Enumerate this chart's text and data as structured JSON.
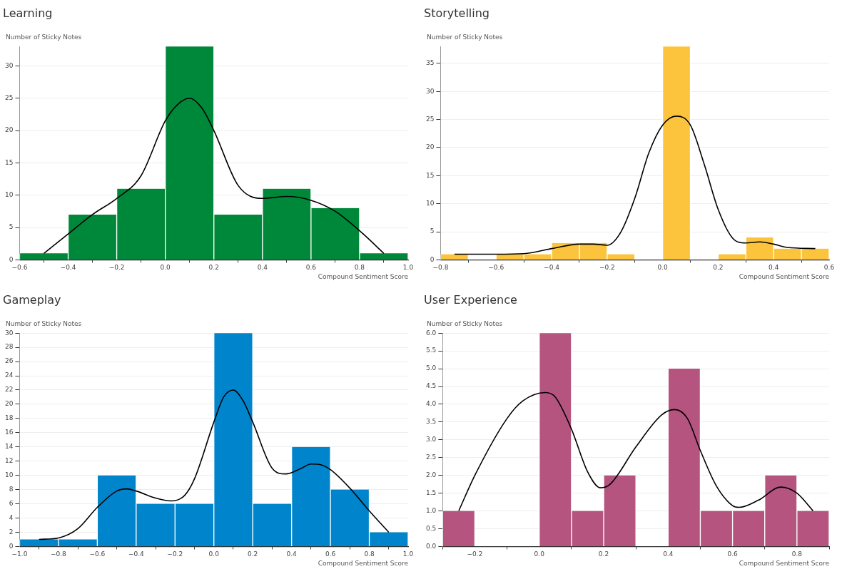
{
  "chart_data": [
    {
      "type": "histogram",
      "title": "Learning",
      "ylabel": "Number of Sticky Notes",
      "xlabel": "Compound Sentiment Score",
      "color": "#00883a",
      "bins": [
        -0.6,
        -0.4,
        -0.2,
        0,
        0.2,
        0.4,
        0.6,
        0.8,
        1.0
      ],
      "values": [
        1,
        7,
        11,
        33,
        7,
        11,
        8,
        1
      ],
      "series": [
        {
          "type": "line",
          "color": "#000000",
          "x": [
            -0.5,
            -0.4,
            -0.3,
            -0.2,
            -0.1,
            0,
            0.05,
            0.1,
            0.15,
            0.2,
            0.3,
            0.4,
            0.5,
            0.6,
            0.7,
            0.8,
            0.9
          ],
          "values": [
            1,
            4,
            7,
            9.5,
            13,
            21.5,
            24,
            25,
            23.5,
            20,
            11.5,
            9.5,
            9.8,
            9.2,
            7.5,
            4.5,
            1
          ]
        }
      ],
      "xlim": [
        -0.6,
        1.0
      ],
      "xticks": [
        {
          "value": -0.6,
          "label": "−0.6"
        },
        {
          "value": -0.4,
          "label": "−0.4"
        },
        {
          "value": -0.2,
          "label": "−0.2"
        },
        {
          "value": 0,
          "label": "0.0"
        },
        {
          "value": 0.2,
          "label": "0.2"
        },
        {
          "value": 0.4,
          "label": "0.4"
        },
        {
          "value": 0.6,
          "label": "0.6"
        },
        {
          "value": 0.8,
          "label": "0.8"
        },
        {
          "value": 1.0,
          "label": "1.0"
        }
      ],
      "ylim": [
        0,
        33
      ],
      "yticks": [
        0,
        5,
        10,
        15,
        20,
        25,
        30
      ],
      "grid": "y",
      "legend": false
    },
    {
      "type": "histogram",
      "title": "Storytelling",
      "ylabel": "Number of Sticky Notes",
      "xlabel": "Compound Sentiment Score",
      "color": "#fcc43c",
      "bins": [
        -0.8,
        -0.7,
        -0.6,
        -0.5,
        -0.4,
        -0.3,
        -0.2,
        -0.1,
        0,
        0.1,
        0.2,
        0.3,
        0.4,
        0.5,
        0.6
      ],
      "values": [
        1,
        0,
        1,
        1,
        3,
        3,
        1,
        0,
        38,
        0,
        1,
        4,
        2,
        2
      ],
      "series": [
        {
          "type": "line",
          "color": "#000000",
          "x": [
            -0.75,
            -0.6,
            -0.5,
            -0.4,
            -0.3,
            -0.25,
            -0.2,
            -0.15,
            -0.1,
            -0.05,
            0,
            0.05,
            0.1,
            0.15,
            0.2,
            0.25,
            0.3,
            0.35,
            0.4,
            0.45,
            0.55
          ],
          "values": [
            1,
            1,
            1.1,
            2,
            2.8,
            2.8,
            2.6,
            5,
            11,
            19,
            24,
            25.6,
            24,
            17,
            9,
            4,
            3,
            3.2,
            2.8,
            2.2,
            2
          ]
        }
      ],
      "xlim": [
        -0.8,
        0.6
      ],
      "xticks": [
        {
          "value": -0.8,
          "label": "−0.8"
        },
        {
          "value": -0.6,
          "label": "−0.6"
        },
        {
          "value": -0.4,
          "label": "−0.4"
        },
        {
          "value": -0.2,
          "label": "−0.2"
        },
        {
          "value": 0,
          "label": "0.0"
        },
        {
          "value": 0.2,
          "label": "0.2"
        },
        {
          "value": 0.4,
          "label": "0.4"
        },
        {
          "value": 0.6,
          "label": "0.6"
        }
      ],
      "ylim": [
        0,
        38
      ],
      "yticks": [
        0,
        5,
        10,
        15,
        20,
        25,
        30,
        35
      ],
      "grid": "y",
      "legend": false
    },
    {
      "type": "histogram",
      "title": "Gameplay",
      "ylabel": "Number of Sticky Notes",
      "xlabel": "Compound Sentiment Score",
      "color": "#0085cc",
      "bins": [
        -1.0,
        -0.8,
        -0.6,
        -0.4,
        -0.2,
        0,
        0.2,
        0.4,
        0.6,
        0.8,
        1.0
      ],
      "values": [
        1,
        1,
        10,
        6,
        6,
        30,
        6,
        14,
        8,
        2
      ],
      "series": [
        {
          "type": "line",
          "color": "#000000",
          "x": [
            -0.9,
            -0.8,
            -0.7,
            -0.6,
            -0.5,
            -0.45,
            -0.4,
            -0.3,
            -0.22,
            -0.15,
            -0.1,
            0,
            0.05,
            0.1,
            0.15,
            0.2,
            0.3,
            0.37,
            0.45,
            0.5,
            0.55,
            0.6,
            0.7,
            0.8,
            0.9
          ],
          "values": [
            1,
            1.2,
            2.5,
            5.5,
            7.8,
            8.1,
            7.8,
            6.8,
            6.4,
            7.2,
            9.5,
            17.5,
            21,
            22,
            20.5,
            17.5,
            11,
            10.2,
            11,
            11.6,
            11.5,
            10.8,
            8.2,
            5,
            2
          ]
        }
      ],
      "xlim": [
        -1.0,
        1.0
      ],
      "xticks": [
        {
          "value": -1.0,
          "label": "−1.0"
        },
        {
          "value": -0.8,
          "label": "−0.8"
        },
        {
          "value": -0.6,
          "label": "−0.6"
        },
        {
          "value": -0.4,
          "label": "−0.4"
        },
        {
          "value": -0.2,
          "label": "−0.2"
        },
        {
          "value": 0,
          "label": "0.0"
        },
        {
          "value": 0.2,
          "label": "0.2"
        },
        {
          "value": 0.4,
          "label": "0.4"
        },
        {
          "value": 0.6,
          "label": "0.6"
        },
        {
          "value": 0.8,
          "label": "0.8"
        },
        {
          "value": 1.0,
          "label": "1.0"
        }
      ],
      "ylim": [
        0,
        30
      ],
      "yticks": [
        0,
        2,
        4,
        6,
        8,
        10,
        12,
        14,
        16,
        18,
        20,
        22,
        24,
        26,
        28,
        30
      ],
      "grid": "y",
      "legend": false
    },
    {
      "type": "histogram",
      "title": "User Experience",
      "ylabel": "Number of Sticky Notes",
      "xlabel": "Compound Sentiment Score",
      "color": "#b5557f",
      "bins": [
        -0.3,
        -0.2,
        -0.1,
        0,
        0.1,
        0.2,
        0.3,
        0.4,
        0.5,
        0.6,
        0.7,
        0.8,
        0.9
      ],
      "values": [
        1,
        0,
        0,
        6,
        1,
        2,
        0,
        5,
        1,
        1,
        2,
        1
      ],
      "series": [
        {
          "type": "line",
          "color": "#000000",
          "x": [
            -0.25,
            -0.2,
            -0.1,
            -0.05,
            0.02,
            0.05,
            0.1,
            0.15,
            0.19,
            0.22,
            0.3,
            0.38,
            0.42,
            0.46,
            0.5,
            0.55,
            0.6,
            0.62,
            0.68,
            0.75,
            0.8,
            0.85
          ],
          "values": [
            1,
            2,
            3.6,
            4.1,
            4.33,
            4.2,
            3.3,
            2.1,
            1.65,
            1.75,
            2.8,
            3.7,
            3.85,
            3.6,
            2.7,
            1.7,
            1.15,
            1.1,
            1.3,
            1.67,
            1.5,
            1
          ]
        }
      ],
      "xlim": [
        -0.3,
        0.9
      ],
      "xticks": [
        {
          "value": -0.2,
          "label": "−0.2"
        },
        {
          "value": 0,
          "label": "0.0"
        },
        {
          "value": 0.2,
          "label": "0.2"
        },
        {
          "value": 0.4,
          "label": "0.4"
        },
        {
          "value": 0.6,
          "label": "0.6"
        },
        {
          "value": 0.8,
          "label": "0.8"
        }
      ],
      "ylim": [
        0,
        6
      ],
      "yticks": [
        {
          "value": 0,
          "label": "0.0"
        },
        {
          "value": 0.5,
          "label": "0.5"
        },
        {
          "value": 1,
          "label": "1.0"
        },
        {
          "value": 1.5,
          "label": "1.5"
        },
        {
          "value": 2,
          "label": "2.0"
        },
        {
          "value": 2.5,
          "label": "2.5"
        },
        {
          "value": 3,
          "label": "3.0"
        },
        {
          "value": 3.5,
          "label": "3.5"
        },
        {
          "value": 4,
          "label": "4.0"
        },
        {
          "value": 4.5,
          "label": "4.5"
        },
        {
          "value": 5,
          "label": "5.0"
        },
        {
          "value": 5.5,
          "label": "5.5"
        },
        {
          "value": 6,
          "label": "6.0"
        }
      ],
      "grid": "y",
      "legend": false
    }
  ]
}
